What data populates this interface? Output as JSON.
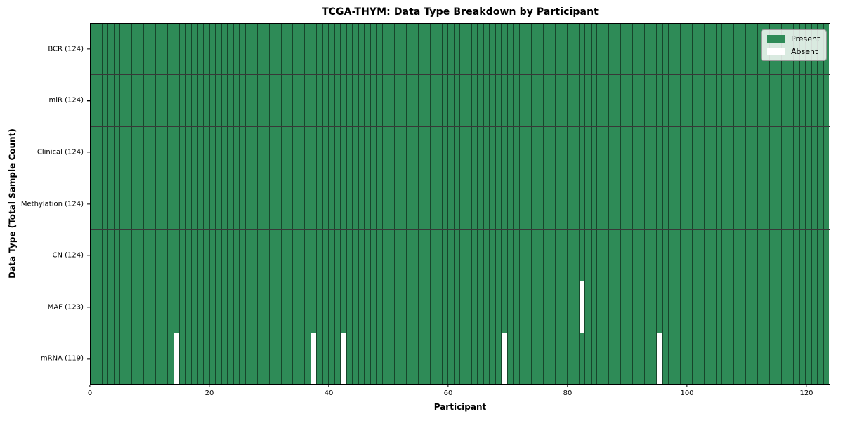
{
  "title": "TCGA-THYM: Data Type Breakdown by Participant",
  "axes": {
    "x_label": "Participant",
    "y_label": "Data Type (Total Sample Count)",
    "x_ticks": [
      0,
      20,
      40,
      60,
      80,
      100,
      120
    ]
  },
  "legend": {
    "items": [
      {
        "label": "Present",
        "color": "#2e8b57"
      },
      {
        "label": "Absent",
        "color": "#ffffff"
      }
    ]
  },
  "chart_data": {
    "type": "heatmap",
    "title": "TCGA-THYM: Data Type Breakdown by Participant",
    "xlabel": "Participant",
    "ylabel": "Data Type (Total Sample Count)",
    "x_range": [
      0,
      124
    ],
    "n_participants": 124,
    "x_tick_values": [
      0,
      20,
      40,
      60,
      80,
      100,
      120
    ],
    "rows": [
      {
        "label": "BCR (124)",
        "data_type": "BCR",
        "total_samples": 124,
        "absent_participants": []
      },
      {
        "label": "miR (124)",
        "data_type": "miR",
        "total_samples": 124,
        "absent_participants": []
      },
      {
        "label": "Clinical (124)",
        "data_type": "Clinical",
        "total_samples": 124,
        "absent_participants": []
      },
      {
        "label": "Methylation (124)",
        "data_type": "Methylation",
        "total_samples": 124,
        "absent_participants": []
      },
      {
        "label": "CN (124)",
        "data_type": "CN",
        "total_samples": 124,
        "absent_participants": []
      },
      {
        "label": "MAF (123)",
        "data_type": "MAF",
        "total_samples": 123,
        "absent_participants": [
          82
        ]
      },
      {
        "label": "mRNA (119)",
        "data_type": "mRNA",
        "total_samples": 119,
        "absent_participants": [
          14,
          37,
          42,
          69,
          95
        ]
      }
    ],
    "colors": {
      "present": "#2e8b57",
      "absent": "#ffffff"
    },
    "legend_entries": [
      "Present",
      "Absent"
    ],
    "legend_position": "upper right",
    "grid": false
  }
}
